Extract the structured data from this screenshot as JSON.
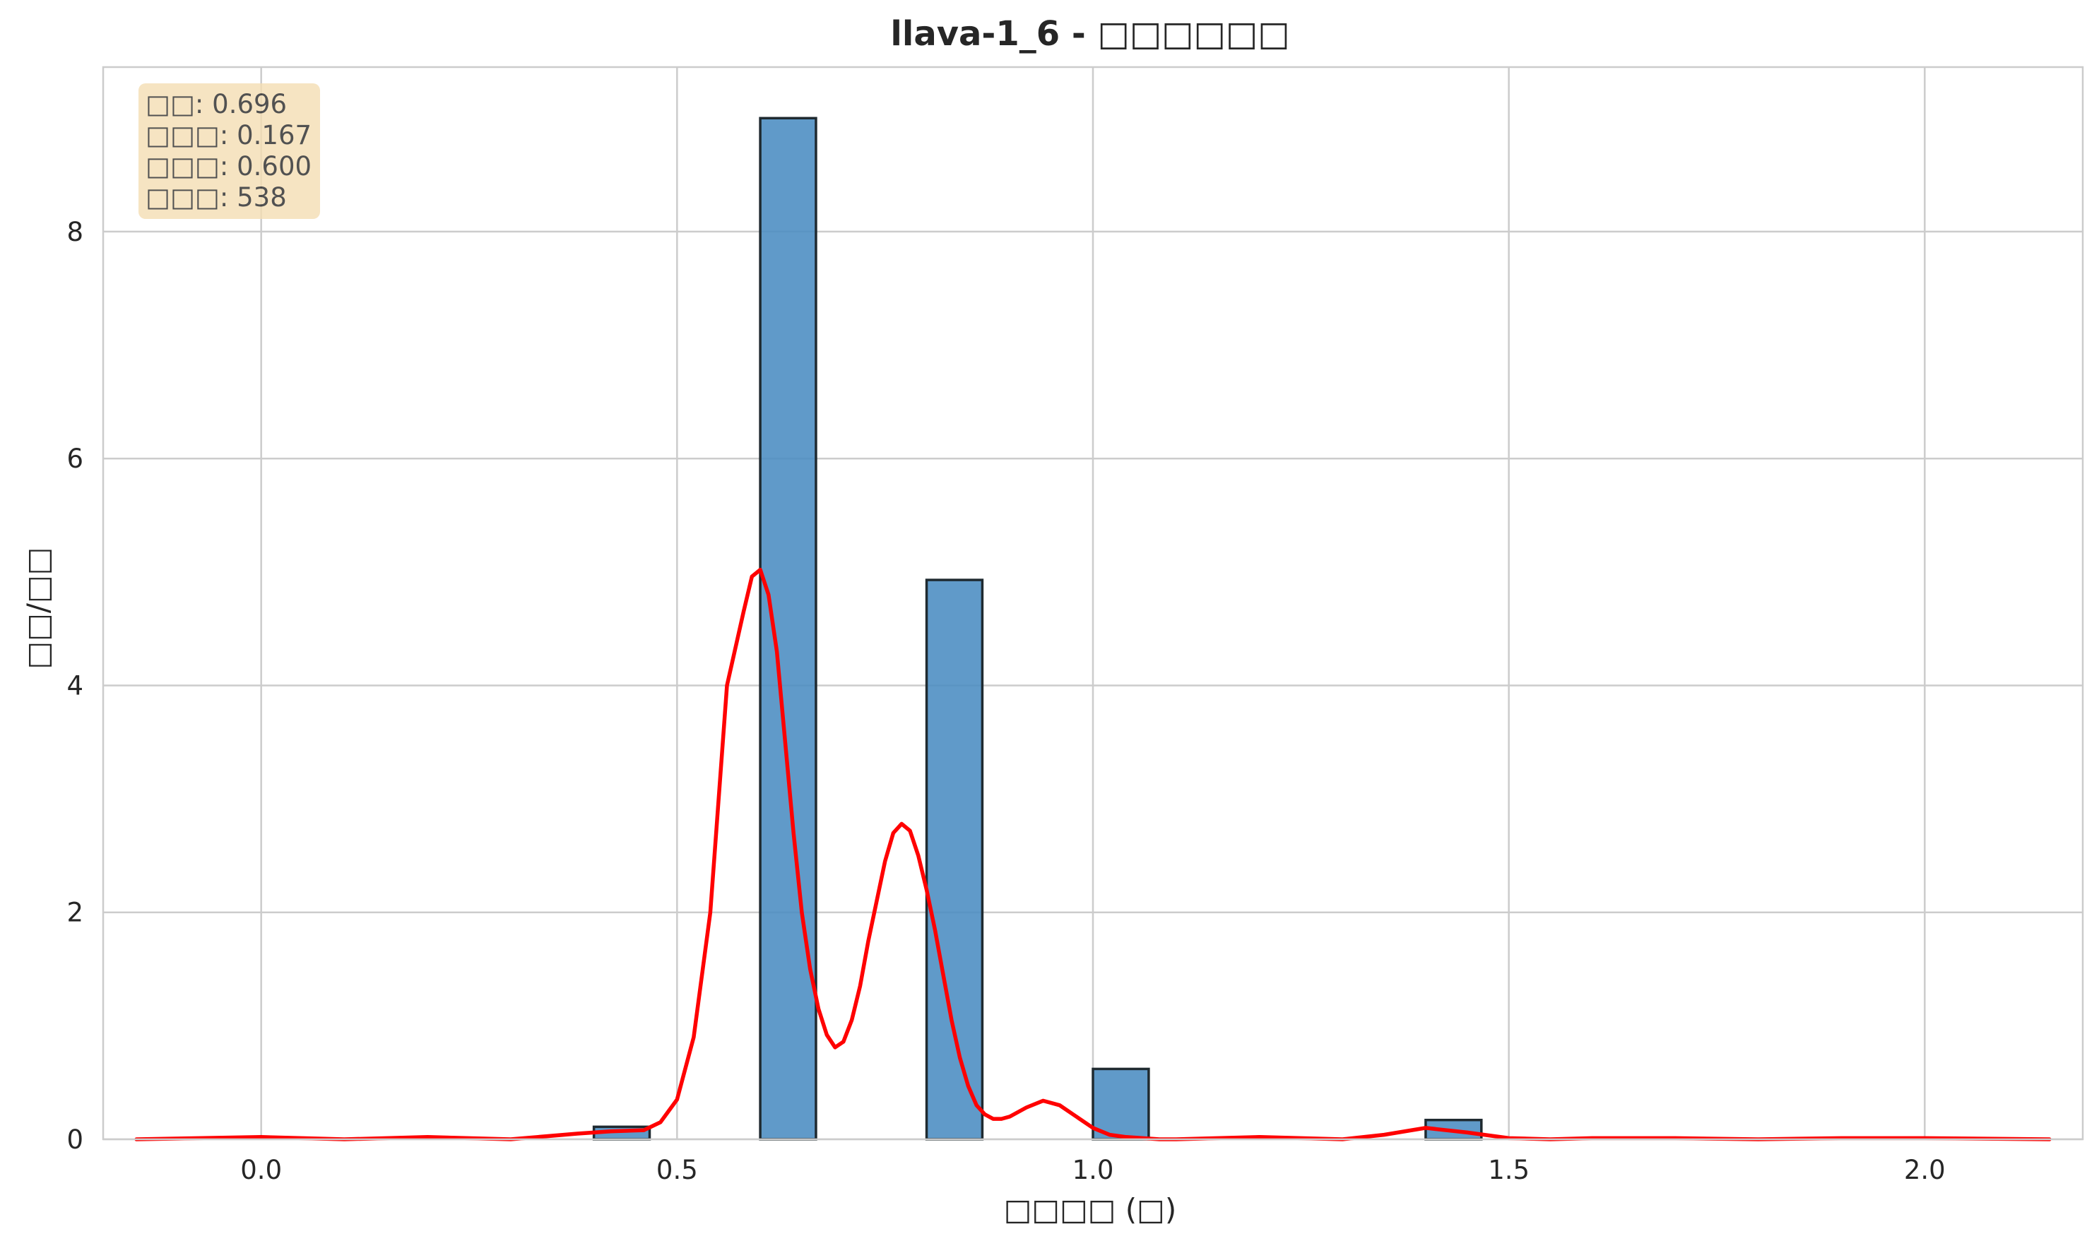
{
  "chart_data": {
    "type": "bar",
    "title": "llava-1_6 - □□□□□□",
    "xlabel": "□□□□ (□)",
    "ylabel": "□□/□□",
    "xlim": [
      -0.19,
      2.19
    ],
    "ylim": [
      0,
      9.45
    ],
    "xticks": [
      0.0,
      0.5,
      1.0,
      1.5,
      2.0
    ],
    "xtick_labels": [
      "0.0",
      "0.5",
      "1.0",
      "1.5",
      "2.0"
    ],
    "yticks": [
      0,
      2,
      4,
      6,
      8
    ],
    "ytick_labels": [
      "0",
      "2",
      "4",
      "6",
      "8"
    ],
    "grid": true,
    "histogram": {
      "bin_width": 0.0667,
      "bins": [
        {
          "x0": 0.4,
          "x1": 0.467,
          "value": 0.11
        },
        {
          "x0": 0.6,
          "x1": 0.667,
          "value": 9.0
        },
        {
          "x0": 0.8,
          "x1": 0.867,
          "value": 4.93
        },
        {
          "x0": 1.0,
          "x1": 1.067,
          "value": 0.62
        },
        {
          "x0": 1.4,
          "x1": 1.467,
          "value": 0.17
        }
      ],
      "color": "#4a8cc2",
      "edge_color": "#1f2a30"
    },
    "kde": {
      "color": "#ff0000",
      "x": [
        -0.15,
        0.0,
        0.1,
        0.2,
        0.3,
        0.38,
        0.42,
        0.46,
        0.48,
        0.5,
        0.52,
        0.54,
        0.56,
        0.58,
        0.59,
        0.6,
        0.61,
        0.62,
        0.63,
        0.64,
        0.65,
        0.66,
        0.67,
        0.68,
        0.69,
        0.7,
        0.71,
        0.72,
        0.73,
        0.74,
        0.75,
        0.76,
        0.77,
        0.78,
        0.79,
        0.8,
        0.81,
        0.82,
        0.83,
        0.84,
        0.85,
        0.86,
        0.87,
        0.88,
        0.89,
        0.9,
        0.92,
        0.94,
        0.96,
        0.98,
        1.0,
        1.02,
        1.04,
        1.06,
        1.08,
        1.1,
        1.15,
        1.2,
        1.3,
        1.35,
        1.4,
        1.45,
        1.5,
        1.55,
        1.6,
        1.7,
        1.8,
        1.9,
        2.0,
        2.15
      ],
      "y": [
        0.0,
        0.02,
        0.0,
        0.02,
        0.0,
        0.05,
        0.07,
        0.08,
        0.15,
        0.35,
        0.9,
        2.0,
        4.0,
        4.65,
        4.96,
        5.02,
        4.8,
        4.3,
        3.5,
        2.7,
        2.0,
        1.5,
        1.15,
        0.92,
        0.81,
        0.86,
        1.05,
        1.35,
        1.75,
        2.1,
        2.45,
        2.7,
        2.78,
        2.72,
        2.5,
        2.2,
        1.85,
        1.45,
        1.05,
        0.72,
        0.47,
        0.3,
        0.22,
        0.18,
        0.18,
        0.2,
        0.28,
        0.34,
        0.3,
        0.2,
        0.1,
        0.04,
        0.02,
        0.01,
        0.0,
        0.0,
        0.01,
        0.02,
        0.0,
        0.04,
        0.1,
        0.06,
        0.01,
        0.0,
        0.01,
        0.01,
        0.0,
        0.01,
        0.01,
        0.0
      ]
    }
  },
  "stats": [
    {
      "label": "□□",
      "value": "0.696"
    },
    {
      "label": "□□□",
      "value": "0.167"
    },
    {
      "label": "□□□",
      "value": "0.600"
    },
    {
      "label": "□□□",
      "value": "538"
    }
  ]
}
